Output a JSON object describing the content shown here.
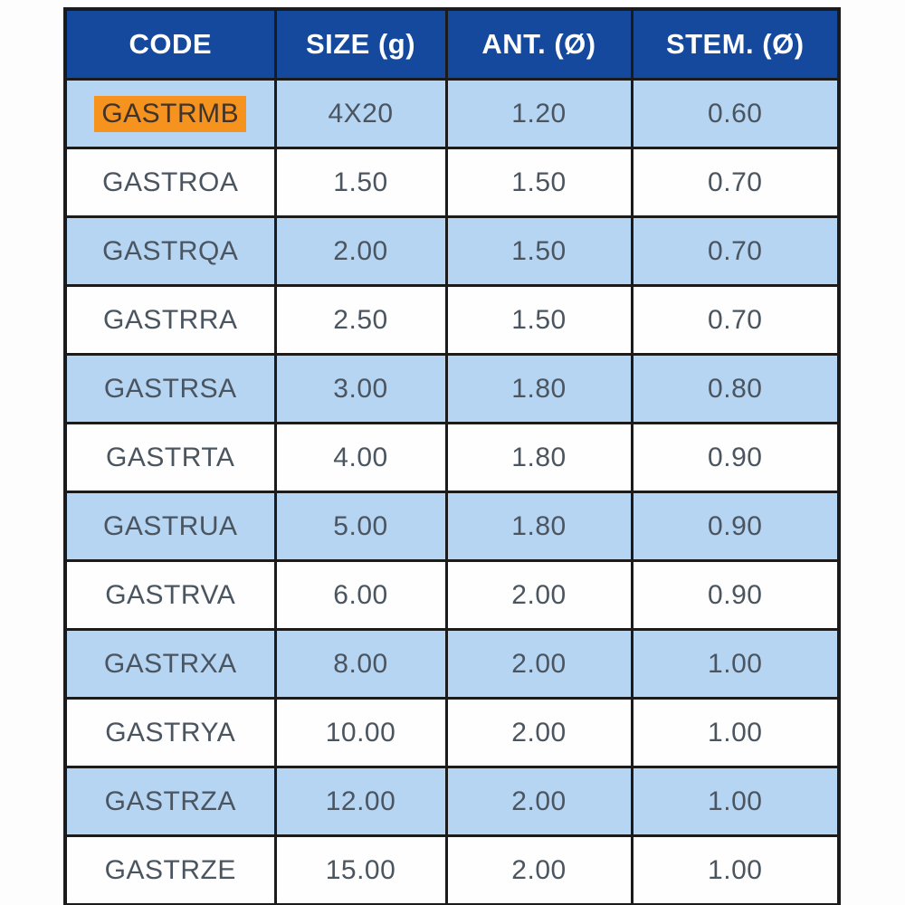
{
  "chart_data": {
    "type": "table",
    "title": "",
    "columns": [
      "CODE",
      "SIZE (g)",
      "ANT. (Ø)",
      "STEM. (Ø)"
    ],
    "rows": [
      {
        "code": "GASTRMB",
        "size": "4X20",
        "ant": "1.20",
        "stem": "0.60",
        "highlighted": true
      },
      {
        "code": "GASTROA",
        "size": "1.50",
        "ant": "1.50",
        "stem": "0.70",
        "highlighted": false
      },
      {
        "code": "GASTRQA",
        "size": "2.00",
        "ant": "1.50",
        "stem": "0.70",
        "highlighted": false
      },
      {
        "code": "GASTRRA",
        "size": "2.50",
        "ant": "1.50",
        "stem": "0.70",
        "highlighted": false
      },
      {
        "code": "GASTRSA",
        "size": "3.00",
        "ant": "1.80",
        "stem": "0.80",
        "highlighted": false
      },
      {
        "code": "GASTRTA",
        "size": "4.00",
        "ant": "1.80",
        "stem": "0.90",
        "highlighted": false
      },
      {
        "code": "GASTRUA",
        "size": "5.00",
        "ant": "1.80",
        "stem": "0.90",
        "highlighted": false
      },
      {
        "code": "GASTRVA",
        "size": "6.00",
        "ant": "2.00",
        "stem": "0.90",
        "highlighted": false
      },
      {
        "code": "GASTRXA",
        "size": "8.00",
        "ant": "2.00",
        "stem": "1.00",
        "highlighted": false
      },
      {
        "code": "GASTRYA",
        "size": "10.00",
        "ant": "2.00",
        "stem": "1.00",
        "highlighted": false
      },
      {
        "code": "GASTRZA",
        "size": "12.00",
        "ant": "2.00",
        "stem": "1.00",
        "highlighted": false
      },
      {
        "code": "GASTRZE",
        "size": "15.00",
        "ant": "2.00",
        "stem": "1.00",
        "highlighted": false
      }
    ],
    "layout_hints": {
      "row_striping": "alternating, first data row shaded blue",
      "highlight_note": "first CODE cell text (GASTRMB) has an orange selection highlight"
    }
  },
  "colors": {
    "header_background": "#14499e",
    "header_text": "#ffffff",
    "row_shade_blue": "#b5d5f3",
    "row_shade_white": "#fefefe",
    "border": "#1b1b1b",
    "cell_text": "#4b5560",
    "highlight_orange": "#f6921e"
  }
}
